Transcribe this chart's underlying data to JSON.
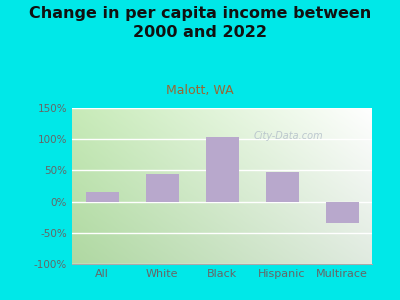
{
  "title": "Change in per capita income between\n2000 and 2022",
  "subtitle": "Malott, WA",
  "categories": [
    "All",
    "White",
    "Black",
    "Hispanic",
    "Multirace"
  ],
  "values": [
    15,
    45,
    103,
    48,
    -35
  ],
  "bar_color": "#b8a8cc",
  "background_color": "#00e8e8",
  "ylim": [
    -100,
    150
  ],
  "yticks": [
    -100,
    -50,
    0,
    50,
    100,
    150
  ],
  "ytick_labels": [
    "-100%",
    "-50%",
    "0%",
    "50%",
    "100%",
    "150%"
  ],
  "title_fontsize": 11.5,
  "subtitle_fontsize": 9,
  "watermark": "City-Data.com",
  "title_color": "#111111",
  "subtitle_color": "#996633",
  "tick_color": "#666666",
  "grad_color_left": "#c8e8b0",
  "grad_color_right": "#f0f5f0"
}
